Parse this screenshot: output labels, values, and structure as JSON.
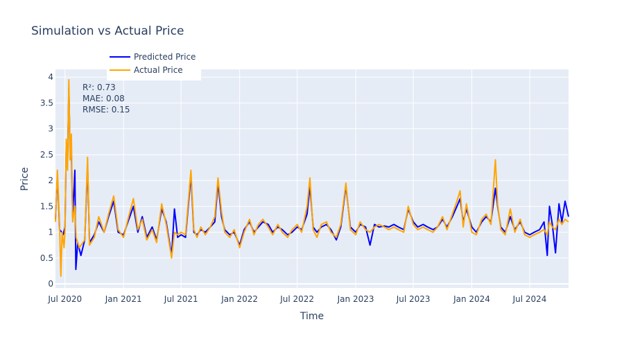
{
  "chart_data": {
    "type": "line",
    "title": "Simulation vs Actual Price",
    "xlabel": "Time",
    "ylabel": "Price",
    "x_range": [
      "2020-06-01",
      "2024-10-31"
    ],
    "ylim": [
      -0.08,
      4.15
    ],
    "x_ticks": [
      {
        "date": "2020-07-01",
        "label": "Jul 2020"
      },
      {
        "date": "2021-01-01",
        "label": "Jan 2021"
      },
      {
        "date": "2021-07-01",
        "label": "Jul 2021"
      },
      {
        "date": "2022-01-01",
        "label": "Jan 2022"
      },
      {
        "date": "2022-07-01",
        "label": "Jul 2022"
      },
      {
        "date": "2023-01-01",
        "label": "Jan 2023"
      },
      {
        "date": "2023-07-01",
        "label": "Jul 2023"
      },
      {
        "date": "2024-01-01",
        "label": "Jan 2024"
      },
      {
        "date": "2024-07-01",
        "label": "Jul 2024"
      }
    ],
    "y_ticks": [
      {
        "value": 0,
        "label": "0"
      },
      {
        "value": 0.5,
        "label": "0.5"
      },
      {
        "value": 1,
        "label": "1"
      },
      {
        "value": 1.5,
        "label": "1.5"
      },
      {
        "value": 2,
        "label": "2"
      },
      {
        "value": 2.5,
        "label": "2.5"
      },
      {
        "value": 3,
        "label": "3"
      },
      {
        "value": 3.5,
        "label": "3.5"
      },
      {
        "value": 4,
        "label": "4"
      }
    ],
    "grid": true,
    "legend_position": "top-left",
    "annotations": [
      "R²: 0.73",
      "MAE: 0.08",
      "RMSE: 0.15"
    ],
    "series": [
      {
        "name": "Predicted Price",
        "color": "#0000ff",
        "points": [
          [
            "2020-06-01",
            1.25
          ],
          [
            "2020-06-07",
            2.1
          ],
          [
            "2020-06-14",
            1.05
          ],
          [
            "2020-06-21",
            1.0
          ],
          [
            "2020-06-25",
            0.95
          ],
          [
            "2020-07-01",
            1.1
          ],
          [
            "2020-07-05",
            2.7
          ],
          [
            "2020-07-09",
            2.3
          ],
          [
            "2020-07-13",
            3.8
          ],
          [
            "2020-07-17",
            2.5
          ],
          [
            "2020-07-21",
            2.6
          ],
          [
            "2020-07-25",
            1.3
          ],
          [
            "2020-08-01",
            2.2
          ],
          [
            "2020-08-04",
            0.28
          ],
          [
            "2020-08-10",
            0.8
          ],
          [
            "2020-08-20",
            0.55
          ],
          [
            "2020-09-01",
            0.85
          ],
          [
            "2020-09-10",
            2.3
          ],
          [
            "2020-09-16",
            0.8
          ],
          [
            "2020-10-01",
            0.95
          ],
          [
            "2020-10-15",
            1.2
          ],
          [
            "2020-11-01",
            1.0
          ],
          [
            "2020-11-15",
            1.3
          ],
          [
            "2020-12-01",
            1.6
          ],
          [
            "2020-12-15",
            1.0
          ],
          [
            "2021-01-01",
            0.95
          ],
          [
            "2021-01-15",
            1.2
          ],
          [
            "2021-02-01",
            1.5
          ],
          [
            "2021-02-15",
            1.0
          ],
          [
            "2021-03-01",
            1.3
          ],
          [
            "2021-03-15",
            0.9
          ],
          [
            "2021-04-01",
            1.1
          ],
          [
            "2021-04-15",
            0.85
          ],
          [
            "2021-05-01",
            1.45
          ],
          [
            "2021-05-15",
            1.2
          ],
          [
            "2021-06-01",
            0.55
          ],
          [
            "2021-06-10",
            1.45
          ],
          [
            "2021-06-20",
            0.9
          ],
          [
            "2021-07-01",
            0.95
          ],
          [
            "2021-07-15",
            0.9
          ],
          [
            "2021-08-01",
            2.1
          ],
          [
            "2021-08-10",
            1.0
          ],
          [
            "2021-08-20",
            0.95
          ],
          [
            "2021-09-01",
            1.05
          ],
          [
            "2021-09-15",
            1.0
          ],
          [
            "2021-10-01",
            1.1
          ],
          [
            "2021-10-15",
            1.2
          ],
          [
            "2021-10-25",
            1.95
          ],
          [
            "2021-11-05",
            1.3
          ],
          [
            "2021-11-15",
            1.05
          ],
          [
            "2021-12-01",
            0.95
          ],
          [
            "2021-12-15",
            1.0
          ],
          [
            "2022-01-01",
            0.75
          ],
          [
            "2022-01-15",
            1.05
          ],
          [
            "2022-02-01",
            1.2
          ],
          [
            "2022-02-15",
            1.0
          ],
          [
            "2022-03-01",
            1.1
          ],
          [
            "2022-03-15",
            1.2
          ],
          [
            "2022-04-01",
            1.15
          ],
          [
            "2022-04-15",
            1.0
          ],
          [
            "2022-05-01",
            1.1
          ],
          [
            "2022-05-15",
            1.05
          ],
          [
            "2022-06-01",
            0.95
          ],
          [
            "2022-06-15",
            1.0
          ],
          [
            "2022-07-01",
            1.1
          ],
          [
            "2022-07-15",
            1.05
          ],
          [
            "2022-08-01",
            1.35
          ],
          [
            "2022-08-10",
            1.9
          ],
          [
            "2022-08-20",
            1.1
          ],
          [
            "2022-09-01",
            1.0
          ],
          [
            "2022-09-15",
            1.1
          ],
          [
            "2022-10-01",
            1.15
          ],
          [
            "2022-10-15",
            1.05
          ],
          [
            "2022-11-01",
            0.85
          ],
          [
            "2022-11-15",
            1.1
          ],
          [
            "2022-12-01",
            1.9
          ],
          [
            "2022-12-15",
            1.1
          ],
          [
            "2023-01-01",
            1.0
          ],
          [
            "2023-01-15",
            1.15
          ],
          [
            "2023-02-01",
            1.1
          ],
          [
            "2023-02-15",
            0.75
          ],
          [
            "2023-03-01",
            1.15
          ],
          [
            "2023-03-15",
            1.1
          ],
          [
            "2023-04-01",
            1.12
          ],
          [
            "2023-04-15",
            1.1
          ],
          [
            "2023-05-01",
            1.15
          ],
          [
            "2023-05-15",
            1.1
          ],
          [
            "2023-06-01",
            1.05
          ],
          [
            "2023-06-15",
            1.45
          ],
          [
            "2023-07-01",
            1.2
          ],
          [
            "2023-07-15",
            1.1
          ],
          [
            "2023-08-01",
            1.15
          ],
          [
            "2023-08-15",
            1.1
          ],
          [
            "2023-09-01",
            1.05
          ],
          [
            "2023-09-15",
            1.1
          ],
          [
            "2023-10-01",
            1.25
          ],
          [
            "2023-10-15",
            1.1
          ],
          [
            "2023-11-01",
            1.3
          ],
          [
            "2023-11-15",
            1.5
          ],
          [
            "2023-11-25",
            1.65
          ],
          [
            "2023-12-05",
            1.2
          ],
          [
            "2023-12-15",
            1.45
          ],
          [
            "2024-01-01",
            1.1
          ],
          [
            "2024-01-15",
            1.0
          ],
          [
            "2024-02-01",
            1.2
          ],
          [
            "2024-02-15",
            1.3
          ],
          [
            "2024-03-01",
            1.2
          ],
          [
            "2024-03-15",
            1.85
          ],
          [
            "2024-03-22",
            1.5
          ],
          [
            "2024-04-01",
            1.1
          ],
          [
            "2024-04-15",
            1.0
          ],
          [
            "2024-05-01",
            1.3
          ],
          [
            "2024-05-15",
            1.05
          ],
          [
            "2024-06-01",
            1.2
          ],
          [
            "2024-06-15",
            1.0
          ],
          [
            "2024-07-01",
            0.95
          ],
          [
            "2024-07-15",
            1.0
          ],
          [
            "2024-08-01",
            1.05
          ],
          [
            "2024-08-15",
            1.2
          ],
          [
            "2024-08-25",
            0.55
          ],
          [
            "2024-09-01",
            1.5
          ],
          [
            "2024-09-10",
            1.15
          ],
          [
            "2024-09-20",
            0.6
          ],
          [
            "2024-10-01",
            1.55
          ],
          [
            "2024-10-10",
            1.2
          ],
          [
            "2024-10-20",
            1.6
          ],
          [
            "2024-10-31",
            1.3
          ]
        ]
      },
      {
        "name": "Actual Price",
        "color": "#ffa500",
        "points": [
          [
            "2020-06-01",
            1.2
          ],
          [
            "2020-06-07",
            2.2
          ],
          [
            "2020-06-14",
            1.1
          ],
          [
            "2020-06-18",
            0.15
          ],
          [
            "2020-06-22",
            1.0
          ],
          [
            "2020-06-28",
            0.7
          ],
          [
            "2020-07-01",
            1.05
          ],
          [
            "2020-07-05",
            2.8
          ],
          [
            "2020-07-09",
            2.2
          ],
          [
            "2020-07-13",
            3.95
          ],
          [
            "2020-07-17",
            2.4
          ],
          [
            "2020-07-21",
            2.9
          ],
          [
            "2020-07-25",
            1.2
          ],
          [
            "2020-08-01",
            1.5
          ],
          [
            "2020-08-05",
            0.9
          ],
          [
            "2020-08-15",
            0.7
          ],
          [
            "2020-09-01",
            0.85
          ],
          [
            "2020-09-10",
            2.45
          ],
          [
            "2020-09-16",
            0.75
          ],
          [
            "2020-10-01",
            0.9
          ],
          [
            "2020-10-15",
            1.3
          ],
          [
            "2020-11-01",
            1.0
          ],
          [
            "2020-11-15",
            1.35
          ],
          [
            "2020-12-01",
            1.7
          ],
          [
            "2020-12-15",
            1.05
          ],
          [
            "2021-01-01",
            0.9
          ],
          [
            "2021-01-15",
            1.25
          ],
          [
            "2021-02-01",
            1.65
          ],
          [
            "2021-02-15",
            1.05
          ],
          [
            "2021-03-01",
            1.25
          ],
          [
            "2021-03-15",
            0.85
          ],
          [
            "2021-04-01",
            1.05
          ],
          [
            "2021-04-15",
            0.8
          ],
          [
            "2021-05-01",
            1.55
          ],
          [
            "2021-05-15",
            1.15
          ],
          [
            "2021-06-01",
            0.5
          ],
          [
            "2021-06-10",
            1.0
          ],
          [
            "2021-06-20",
            0.95
          ],
          [
            "2021-07-01",
            1.0
          ],
          [
            "2021-07-15",
            0.95
          ],
          [
            "2021-08-01",
            2.2
          ],
          [
            "2021-08-10",
            1.05
          ],
          [
            "2021-08-20",
            0.9
          ],
          [
            "2021-09-01",
            1.1
          ],
          [
            "2021-09-15",
            0.95
          ],
          [
            "2021-10-01",
            1.1
          ],
          [
            "2021-10-15",
            1.3
          ],
          [
            "2021-10-25",
            2.05
          ],
          [
            "2021-11-05",
            1.4
          ],
          [
            "2021-11-15",
            1.0
          ],
          [
            "2021-12-01",
            0.9
          ],
          [
            "2021-12-15",
            1.05
          ],
          [
            "2022-01-01",
            0.7
          ],
          [
            "2022-01-15",
            1.0
          ],
          [
            "2022-02-01",
            1.25
          ],
          [
            "2022-02-15",
            0.95
          ],
          [
            "2022-03-01",
            1.15
          ],
          [
            "2022-03-15",
            1.25
          ],
          [
            "2022-04-01",
            1.1
          ],
          [
            "2022-04-15",
            0.95
          ],
          [
            "2022-05-01",
            1.15
          ],
          [
            "2022-05-15",
            1.0
          ],
          [
            "2022-06-01",
            0.9
          ],
          [
            "2022-06-15",
            1.05
          ],
          [
            "2022-07-01",
            1.15
          ],
          [
            "2022-07-15",
            1.0
          ],
          [
            "2022-08-01",
            1.5
          ],
          [
            "2022-08-10",
            2.05
          ],
          [
            "2022-08-20",
            1.05
          ],
          [
            "2022-09-01",
            0.9
          ],
          [
            "2022-09-15",
            1.15
          ],
          [
            "2022-10-01",
            1.2
          ],
          [
            "2022-10-15",
            1.0
          ],
          [
            "2022-11-01",
            0.9
          ],
          [
            "2022-11-15",
            1.15
          ],
          [
            "2022-12-01",
            1.95
          ],
          [
            "2022-12-15",
            1.05
          ],
          [
            "2023-01-01",
            0.95
          ],
          [
            "2023-01-15",
            1.2
          ],
          [
            "2023-02-01",
            1.05
          ],
          [
            "2023-02-15",
            1.0
          ],
          [
            "2023-03-01",
            1.1
          ],
          [
            "2023-03-15",
            1.15
          ],
          [
            "2023-04-01",
            1.1
          ],
          [
            "2023-04-15",
            1.05
          ],
          [
            "2023-05-01",
            1.1
          ],
          [
            "2023-05-15",
            1.05
          ],
          [
            "2023-06-01",
            1.0
          ],
          [
            "2023-06-15",
            1.5
          ],
          [
            "2023-07-01",
            1.15
          ],
          [
            "2023-07-15",
            1.05
          ],
          [
            "2023-08-01",
            1.1
          ],
          [
            "2023-08-15",
            1.05
          ],
          [
            "2023-09-01",
            1.0
          ],
          [
            "2023-09-15",
            1.1
          ],
          [
            "2023-10-01",
            1.3
          ],
          [
            "2023-10-15",
            1.05
          ],
          [
            "2023-11-01",
            1.35
          ],
          [
            "2023-11-15",
            1.6
          ],
          [
            "2023-11-25",
            1.8
          ],
          [
            "2023-12-05",
            1.1
          ],
          [
            "2023-12-15",
            1.55
          ],
          [
            "2024-01-01",
            1.0
          ],
          [
            "2024-01-15",
            0.95
          ],
          [
            "2024-02-01",
            1.25
          ],
          [
            "2024-02-15",
            1.35
          ],
          [
            "2024-03-01",
            1.15
          ],
          [
            "2024-03-15",
            2.4
          ],
          [
            "2024-03-22",
            1.55
          ],
          [
            "2024-04-01",
            1.05
          ],
          [
            "2024-04-15",
            0.95
          ],
          [
            "2024-05-01",
            1.45
          ],
          [
            "2024-05-15",
            1.0
          ],
          [
            "2024-06-01",
            1.25
          ],
          [
            "2024-06-15",
            0.95
          ],
          [
            "2024-07-01",
            0.9
          ],
          [
            "2024-07-15",
            0.95
          ],
          [
            "2024-08-01",
            1.0
          ],
          [
            "2024-08-15",
            1.05
          ],
          [
            "2024-08-25",
            0.95
          ],
          [
            "2024-09-01",
            1.2
          ],
          [
            "2024-09-10",
            1.1
          ],
          [
            "2024-09-20",
            1.05
          ],
          [
            "2024-10-01",
            1.25
          ],
          [
            "2024-10-10",
            1.15
          ],
          [
            "2024-10-20",
            1.25
          ],
          [
            "2024-10-31",
            1.2
          ]
        ]
      }
    ]
  }
}
